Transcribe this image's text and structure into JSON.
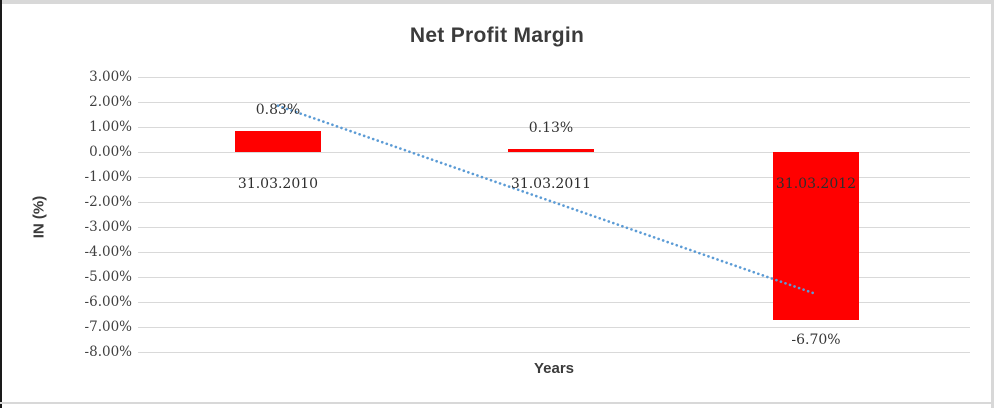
{
  "chart_data": {
    "type": "bar",
    "title": "Net Profit Margin",
    "xlabel": "Years",
    "ylabel": "IN (%)",
    "categories": [
      "31.03.2010",
      "31.03.2011",
      "31.03.2012"
    ],
    "values": [
      0.83,
      0.13,
      -6.7
    ],
    "data_labels": [
      "0.83%",
      "0.13%",
      "-6.70%"
    ],
    "ytick_labels": [
      "3.00%",
      "2.00%",
      "1.00%",
      "0.00%",
      "-1.00%",
      "-2.00%",
      "-3.00%",
      "-4.00%",
      "-5.00%",
      "-6.00%",
      "-7.00%",
      "-8.00%"
    ],
    "ylim": [
      -8,
      3
    ],
    "ytick_step": 1,
    "grid": true,
    "legend": "none",
    "bar_color": "#FF0000",
    "label_color": "#353535",
    "gridline_color": "#d9d9d9",
    "trendline": {
      "type": "linear",
      "style": "dotted",
      "color": "#5B9BD5",
      "start_value": 1.85,
      "end_value": -5.68
    }
  }
}
